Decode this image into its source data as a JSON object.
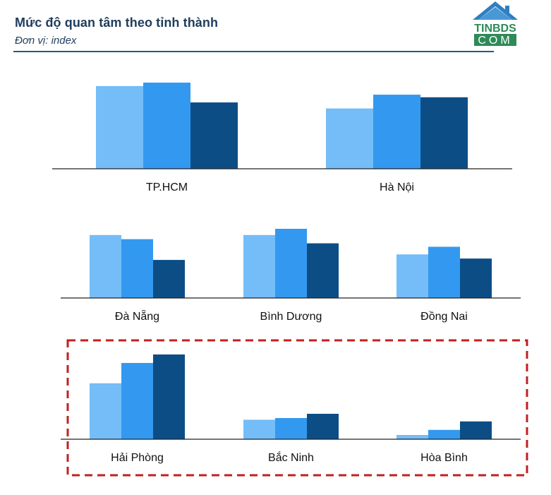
{
  "header": {
    "title": "Mức độ quan tâm theo tỉnh thành",
    "subtitle": "Đơn vị: index"
  },
  "logo": {
    "top_text": "TINBDS",
    "bottom_text": "COM"
  },
  "colors": {
    "series": [
      "#74bdf8",
      "#3399f0",
      "#0c4d86"
    ],
    "axis": "#222222",
    "highlight": "#c21f1f",
    "title": "#1f3d5c",
    "logo_house": "#2f7fc1",
    "logo_green": "#2e8b57"
  },
  "chart_data": [
    {
      "type": "bar",
      "row": 1,
      "categories": [
        "TP.HCM",
        "Hà Nội"
      ],
      "series": [
        {
          "values": [
            96,
            70
          ]
        },
        {
          "values": [
            100,
            86
          ]
        },
        {
          "values": [
            77,
            83
          ]
        }
      ],
      "ylim": [
        0,
        100
      ],
      "grid": false,
      "legend": "none"
    },
    {
      "type": "bar",
      "row": 2,
      "categories": [
        "Đà Nẵng",
        "Bình Dương",
        "Đồng Nai"
      ],
      "series": [
        {
          "values": [
            91,
            91,
            63
          ]
        },
        {
          "values": [
            85,
            100,
            74
          ]
        },
        {
          "values": [
            55,
            79,
            57
          ]
        }
      ],
      "ylim": [
        0,
        100
      ],
      "grid": false,
      "legend": "none"
    },
    {
      "type": "bar",
      "row": 3,
      "categories": [
        "Hải Phòng",
        "Bắc Ninh",
        "Hòa Bình"
      ],
      "series": [
        {
          "values": [
            66,
            23,
            5
          ]
        },
        {
          "values": [
            90,
            25,
            11
          ]
        },
        {
          "values": [
            100,
            30,
            21
          ]
        }
      ],
      "ylim": [
        0,
        100
      ],
      "grid": false,
      "legend": "none",
      "highlighted": true
    }
  ]
}
